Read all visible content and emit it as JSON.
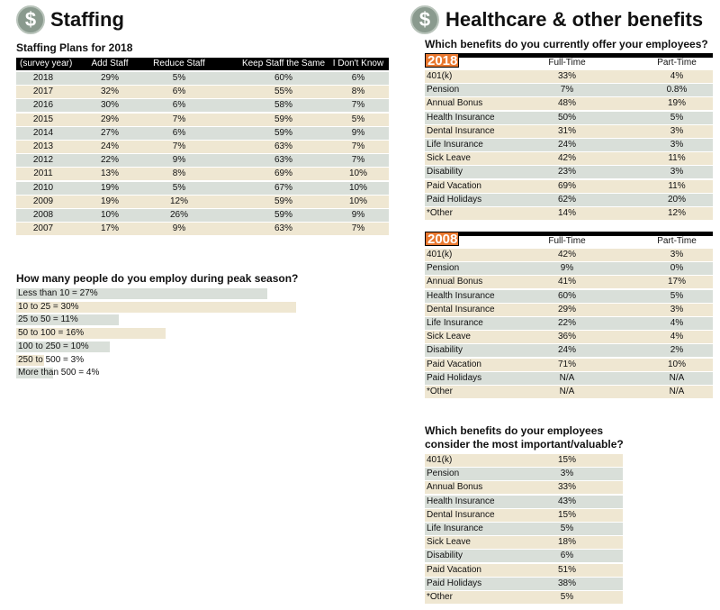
{
  "staffing": {
    "icon": "$",
    "title": "Staffing",
    "subtitle": "Staffing Plans for 2018",
    "table": {
      "header": [
        "(survey year)",
        "Add Staff",
        "Reduce Staff",
        "Keep Staff the Same",
        "I Don't Know"
      ],
      "rows": [
        [
          "2018",
          "29%",
          "5%",
          "60%",
          "6%"
        ],
        [
          "2017",
          "32%",
          "6%",
          "55%",
          "8%"
        ],
        [
          "2016",
          "30%",
          "6%",
          "58%",
          "7%"
        ],
        [
          "2015",
          "29%",
          "7%",
          "59%",
          "5%"
        ],
        [
          "2014",
          "27%",
          "6%",
          "59%",
          "9%"
        ],
        [
          "2013",
          "24%",
          "7%",
          "63%",
          "7%"
        ],
        [
          "2012",
          "22%",
          "9%",
          "63%",
          "7%"
        ],
        [
          "2011",
          "13%",
          "8%",
          "69%",
          "10%"
        ],
        [
          "2010",
          "19%",
          "5%",
          "67%",
          "10%"
        ],
        [
          "2009",
          "19%",
          "12%",
          "59%",
          "10%"
        ],
        [
          "2008",
          "10%",
          "26%",
          "59%",
          "9%"
        ],
        [
          "2007",
          "17%",
          "9%",
          "63%",
          "7%"
        ]
      ]
    }
  },
  "peak": {
    "question": "How many people do you employ during peak season?",
    "bars": [
      {
        "label": "Less than 10 = 27%",
        "value": 27
      },
      {
        "label": "10 to 25 = 30%",
        "value": 30
      },
      {
        "label": "25 to 50 = 11%",
        "value": 11
      },
      {
        "label": "50 to 100 = 16%",
        "value": 16
      },
      {
        "label": "100 to 250 = 10%",
        "value": 10
      },
      {
        "label": "250 to 500 = 3%",
        "value": 3
      },
      {
        "label": "More than 500 = 4%",
        "value": 4
      }
    ]
  },
  "healthcare": {
    "icon": "$",
    "title": "Healthcare & other benefits",
    "question": "Which benefits do you currently offer your employees?",
    "tables": [
      {
        "year": "2018",
        "header": [
          "Full-Time",
          "Part-Time"
        ],
        "rows": [
          [
            "401(k)",
            "33%",
            "4%"
          ],
          [
            "Pension",
            "7%",
            "0.8%"
          ],
          [
            "Annual Bonus",
            "48%",
            "19%"
          ],
          [
            "Health Insurance",
            "50%",
            "5%"
          ],
          [
            "Dental Insurance",
            "31%",
            "3%"
          ],
          [
            "Life Insurance",
            "24%",
            "3%"
          ],
          [
            "Sick Leave",
            "42%",
            "11%"
          ],
          [
            "Disability",
            "23%",
            "3%"
          ],
          [
            "Paid Vacation",
            "69%",
            "11%"
          ],
          [
            "Paid Holidays",
            "62%",
            "20%"
          ],
          [
            "*Other",
            "14%",
            "12%"
          ]
        ]
      },
      {
        "year": "2008",
        "header": [
          "Full-Time",
          "Part-Time"
        ],
        "rows": [
          [
            "401(k)",
            "42%",
            "3%"
          ],
          [
            "Pension",
            "9%",
            "0%"
          ],
          [
            "Annual Bonus",
            "41%",
            "17%"
          ],
          [
            "Health Insurance",
            "60%",
            "5%"
          ],
          [
            "Dental Insurance",
            "29%",
            "3%"
          ],
          [
            "Life Insurance",
            "22%",
            "4%"
          ],
          [
            "Sick Leave",
            "36%",
            "4%"
          ],
          [
            "Disability",
            "24%",
            "2%"
          ],
          [
            "Paid Vacation",
            "71%",
            "10%"
          ],
          [
            "Paid Holidays",
            "N/A",
            "N/A"
          ],
          [
            "*Other",
            "N/A",
            "N/A"
          ]
        ]
      }
    ],
    "question2": [
      "Which benefits do your employees",
      "consider the most important/valuable?"
    ],
    "valued": [
      [
        "401(k)",
        "15%"
      ],
      [
        "Pension",
        "3%"
      ],
      [
        "Annual Bonus",
        "33%"
      ],
      [
        "Health Insurance",
        "43%"
      ],
      [
        "Dental Insurance",
        "15%"
      ],
      [
        "Life Insurance",
        "5%"
      ],
      [
        "Sick Leave",
        "18%"
      ],
      [
        "Disability",
        "6%"
      ],
      [
        "Paid Vacation",
        "51%"
      ],
      [
        "Paid Holidays",
        "38%"
      ],
      [
        "*Other",
        "5%"
      ]
    ]
  }
}
